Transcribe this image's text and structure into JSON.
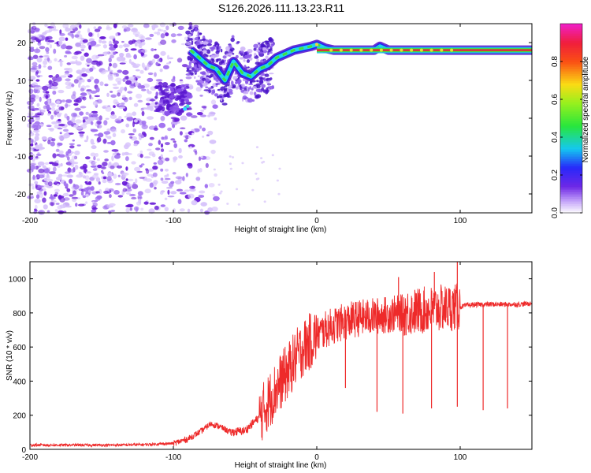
{
  "title": "S126.2026.111.13.23.R11",
  "colors": {
    "snr_line": "#ee2a2a",
    "spectrogram_noise": "#7a2ee0",
    "spectrogram_band": "#e8203c"
  },
  "chart_data": [
    {
      "type": "heatmap",
      "name": "spectrogram",
      "xlabel": "Height of straight line (km)",
      "ylabel": "Frequency (Hz)",
      "xlim": [
        -200,
        150
      ],
      "ylim": [
        -25,
        25
      ],
      "x_ticks": [
        -200,
        -100,
        0,
        100
      ],
      "y_ticks": [
        -20,
        -10,
        0,
        10,
        20
      ],
      "colorbar": {
        "label": "Normalized spectral amplitude",
        "range": [
          0,
          1
        ],
        "ticks": [
          "0.0",
          "0.2",
          "0.4",
          "0.6",
          "0.8"
        ]
      },
      "trace": {
        "description": "bright carrier line",
        "points": [
          [
            -88,
            18
          ],
          [
            -82,
            16
          ],
          [
            -76,
            14
          ],
          [
            -70,
            13
          ],
          [
            -64,
            10
          ],
          [
            -58,
            15
          ],
          [
            -52,
            12
          ],
          [
            -46,
            11
          ],
          [
            -40,
            13
          ],
          [
            -34,
            14
          ],
          [
            -28,
            16
          ],
          [
            -22,
            17
          ],
          [
            -16,
            18
          ],
          [
            -10,
            18.5
          ],
          [
            -4,
            19
          ],
          [
            0,
            19.5
          ],
          [
            6,
            18.5
          ],
          [
            12,
            18
          ],
          [
            20,
            18
          ],
          [
            30,
            18
          ],
          [
            40,
            18
          ],
          [
            44,
            19
          ],
          [
            50,
            18
          ],
          [
            60,
            18
          ],
          [
            70,
            18
          ],
          [
            80,
            18
          ],
          [
            90,
            18
          ],
          [
            100,
            18
          ],
          [
            150,
            18
          ]
        ]
      },
      "noise_region": [
        -200,
        -85
      ]
    },
    {
      "type": "line",
      "name": "snr",
      "xlabel": "Height of straight line (km)",
      "ylabel": "SNR (10 * v/v)",
      "xlim": [
        -200,
        150
      ],
      "ylim": [
        0,
        1100
      ],
      "x_ticks": [
        -200,
        -100,
        0,
        100
      ],
      "y_ticks": [
        0,
        200,
        400,
        600,
        800,
        1000
      ],
      "series": [
        {
          "name": "SNR",
          "x": [
            -200,
            -180,
            -160,
            -140,
            -120,
            -100,
            -90,
            -80,
            -74,
            -68,
            -60,
            -50,
            -40,
            -30,
            -25,
            -20,
            -15,
            -10,
            -5,
            0,
            10,
            20,
            30,
            40,
            50,
            60,
            70,
            80,
            90,
            100,
            105,
            110,
            120,
            130,
            140,
            150
          ],
          "values": [
            25,
            25,
            25,
            25,
            28,
            35,
            60,
            110,
            150,
            135,
            100,
            110,
            190,
            330,
            400,
            460,
            530,
            590,
            630,
            670,
            720,
            750,
            770,
            780,
            790,
            800,
            810,
            820,
            830,
            835,
            845,
            848,
            850,
            850,
            850,
            855
          ]
        }
      ],
      "spikes_down": [
        [
          20,
          360
        ],
        [
          42,
          220
        ],
        [
          60,
          210
        ],
        [
          80,
          240
        ],
        [
          98,
          250
        ],
        [
          116,
          230
        ],
        [
          133,
          240
        ]
      ],
      "spikes_up": [
        [
          57,
          1010
        ],
        [
          82,
          1040
        ],
        [
          98,
          1100
        ]
      ]
    }
  ]
}
